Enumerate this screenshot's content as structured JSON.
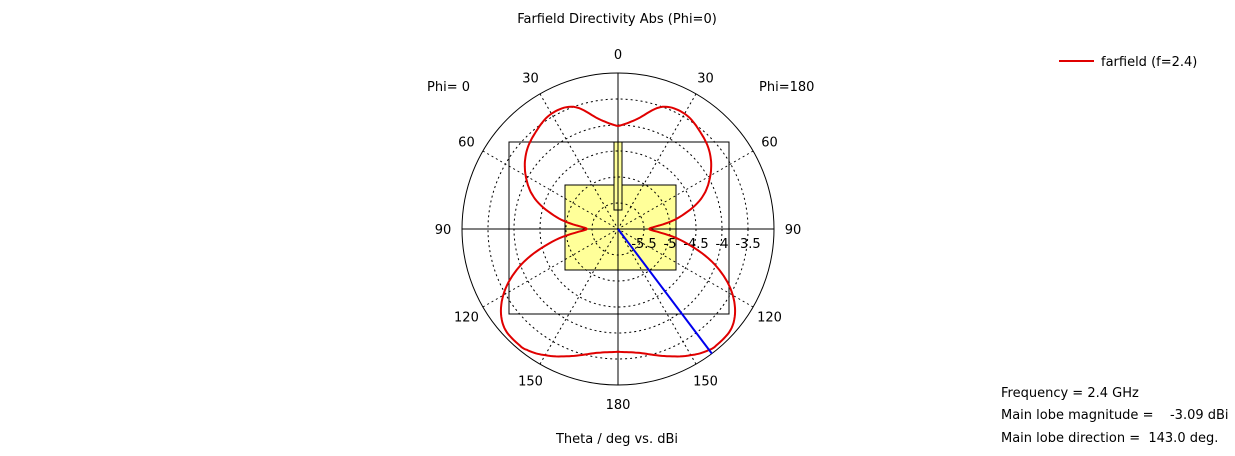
{
  "chart_data": {
    "type": "polar",
    "title": "Farfield Directivity Abs (Phi=0)",
    "xlabel": "Theta / deg vs. dBi",
    "phi_left_label": "Phi=  0",
    "phi_right_label": "Phi=180",
    "angle_labels": [
      "0",
      "30",
      "60",
      "90",
      "120",
      "150",
      "180",
      "150",
      "120",
      "90",
      "60",
      "30"
    ],
    "radial_ticks": [
      -5.5,
      -5,
      -4.5,
      -4,
      -3.5
    ],
    "radial_tick_labels": [
      "-5.5",
      "-5",
      "-4.5",
      "-4",
      "-3.5"
    ],
    "rlim": [
      -6.0,
      -3.0
    ],
    "grid": true,
    "legend_position": "top-right",
    "series": [
      {
        "name": "farfield (f=2.4)",
        "color": "#e00000",
        "theta_deg": [
          0,
          10,
          20,
          30,
          40,
          50,
          60,
          70,
          80,
          90,
          100,
          110,
          120,
          130,
          140,
          143,
          150,
          160,
          170,
          180
        ],
        "dbi": [
          -4.02,
          -3.85,
          -3.5,
          -3.44,
          -3.55,
          -3.7,
          -3.95,
          -4.3,
          -4.85,
          -5.4,
          -4.78,
          -4.03,
          -3.45,
          -3.12,
          -3.07,
          -3.09,
          -3.2,
          -3.4,
          -3.58,
          -3.64
        ]
      }
    ],
    "main_lobe_direction_deg": 143.0,
    "main_lobe_color": "#0000ee"
  },
  "info": {
    "frequency": "Frequency = 2.4 GHz",
    "main_lobe_magnitude": "Main lobe magnitude =    -3.09 dBi",
    "main_lobe_direction": "Main lobe direction =  143.0 deg."
  },
  "colors": {
    "antenna_fill": "#ffff99",
    "axis": "#000000",
    "grid": "#000000"
  }
}
